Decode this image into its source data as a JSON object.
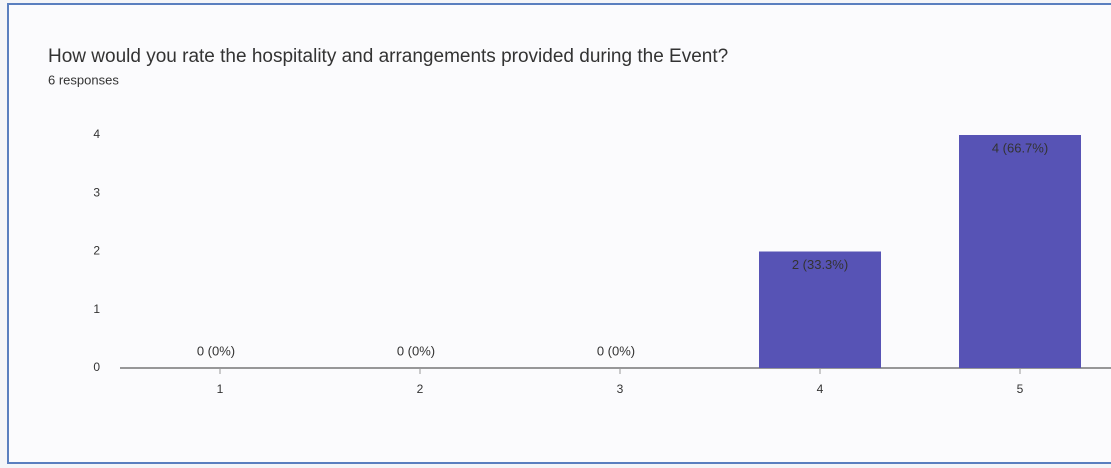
{
  "chart_data": {
    "type": "bar",
    "title": "How would you rate the hospitality and arrangements provided during the Event?",
    "subtitle": "6 responses",
    "categories": [
      "1",
      "2",
      "3",
      "4",
      "5"
    ],
    "values": [
      0,
      0,
      0,
      2,
      4
    ],
    "value_labels": [
      "0 (0%)",
      "0 (0%)",
      "0 (0%)",
      "2 (33.3%)",
      "4 (66.7%)"
    ],
    "color": "#5753b5",
    "ylim": [
      0,
      4
    ],
    "yticks": [
      0,
      1,
      2,
      3,
      4
    ],
    "grid": false
  }
}
